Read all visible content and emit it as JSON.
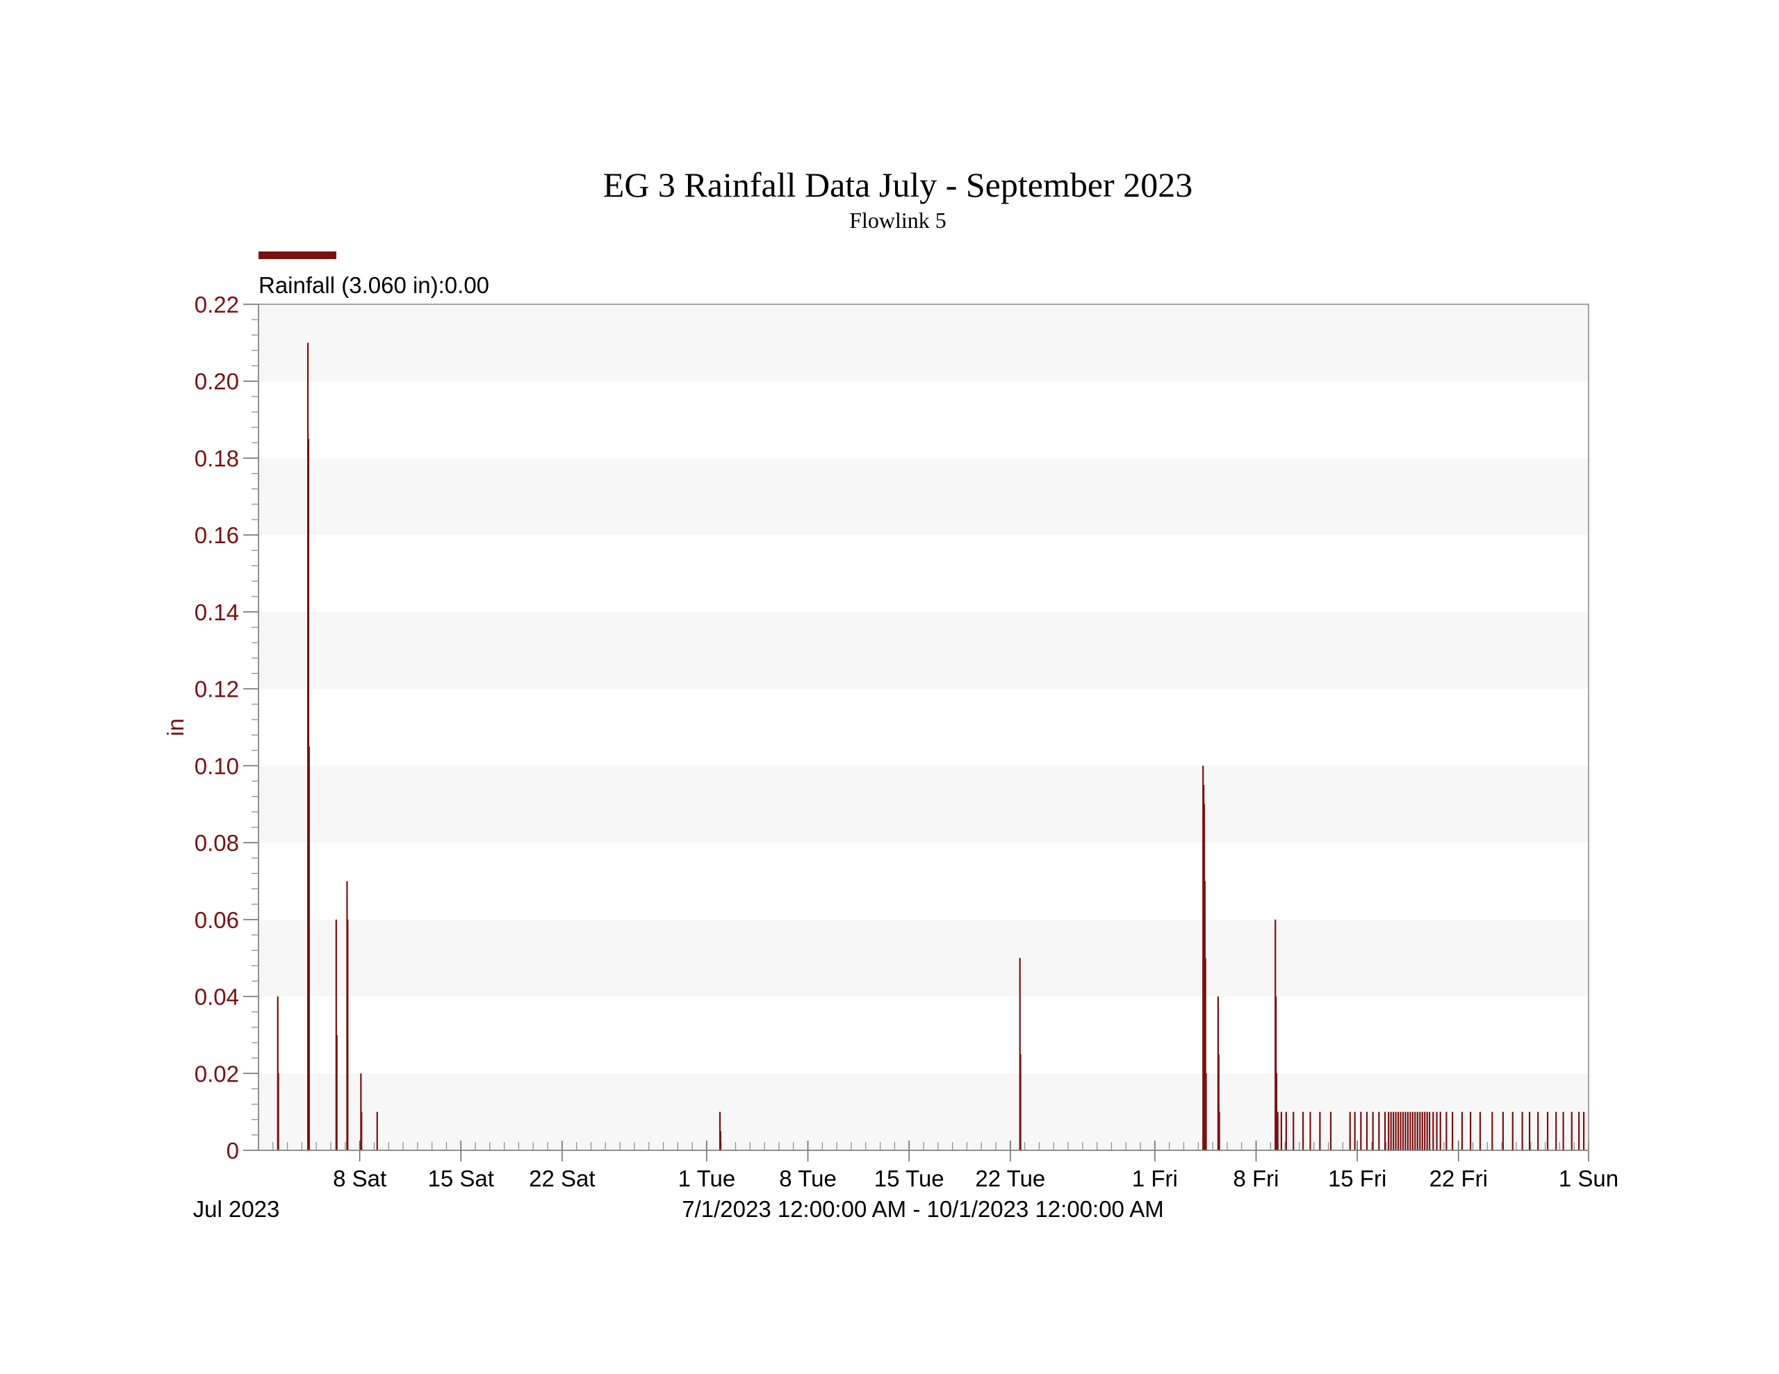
{
  "chart_data": {
    "type": "bar",
    "title": "EG 3 Rainfall Data July - September 2023",
    "subtitle": "Flowlink 5",
    "legend": {
      "label": "Rainfall (3.060 in):0.00",
      "color": "#7a1010",
      "position": "top-left"
    },
    "ylabel": "in",
    "ylim": [
      0,
      0.22
    ],
    "yticks": [
      "0",
      "0.02",
      "0.04",
      "0.06",
      "0.08",
      "0.10",
      "0.12",
      "0.14",
      "0.16",
      "0.18",
      "0.20",
      "0.22"
    ],
    "xlim": [
      "2023-07-01",
      "2023-10-01"
    ],
    "xticks": [
      {
        "date": "2023-07-08",
        "label": "8 Sat"
      },
      {
        "date": "2023-07-15",
        "label": "15 Sat"
      },
      {
        "date": "2023-07-22",
        "label": "22 Sat"
      },
      {
        "date": "2023-08-01",
        "label": "1 Tue"
      },
      {
        "date": "2023-08-08",
        "label": "8 Tue"
      },
      {
        "date": "2023-08-15",
        "label": "15 Tue"
      },
      {
        "date": "2023-08-22",
        "label": "22 Tue"
      },
      {
        "date": "2023-09-01",
        "label": "1 Fri"
      },
      {
        "date": "2023-09-08",
        "label": "8 Fri"
      },
      {
        "date": "2023-09-15",
        "label": "15 Fri"
      },
      {
        "date": "2023-09-22",
        "label": "22 Fri"
      },
      {
        "date": "2023-10-01",
        "label": "1 Sun"
      }
    ],
    "start_label": "Jul 2023",
    "xlabel": "7/1/2023 12:00:00 AM - 10/1/2023 12:00:00 AM",
    "grid": "alternating horizontal bands",
    "series": [
      {
        "name": "Rainfall",
        "color": "#7a1010",
        "points": [
          [
            "2023-07-02 08:00",
            0.04
          ],
          [
            "2023-07-02 09:00",
            0.02
          ],
          [
            "2023-07-04 10:00",
            0.21
          ],
          [
            "2023-07-04 11:00",
            0.185
          ],
          [
            "2023-07-04 12:00",
            0.105
          ],
          [
            "2023-07-06 09:00",
            0.06
          ],
          [
            "2023-07-06 10:00",
            0.03
          ],
          [
            "2023-07-07 03:00",
            0.07
          ],
          [
            "2023-07-07 04:00",
            0.06
          ],
          [
            "2023-07-08 02:00",
            0.02
          ],
          [
            "2023-07-08 03:00",
            0.01
          ],
          [
            "2023-07-09 05:00",
            0.01
          ],
          [
            "2023-08-01 22:00",
            0.01
          ],
          [
            "2023-08-01 23:00",
            0.005
          ],
          [
            "2023-08-22 16:00",
            0.05
          ],
          [
            "2023-08-22 17:00",
            0.025
          ],
          [
            "2023-09-04 08:00",
            0.1
          ],
          [
            "2023-09-04 09:00",
            0.095
          ],
          [
            "2023-09-04 10:00",
            0.09
          ],
          [
            "2023-09-04 11:00",
            0.07
          ],
          [
            "2023-09-04 12:00",
            0.05
          ],
          [
            "2023-09-04 13:00",
            0.02
          ],
          [
            "2023-09-05 09:00",
            0.04
          ],
          [
            "2023-09-05 10:00",
            0.025
          ],
          [
            "2023-09-05 11:00",
            0.01
          ],
          [
            "2023-09-09 08:00",
            0.06
          ],
          [
            "2023-09-09 09:00",
            0.04
          ],
          [
            "2023-09-09 10:00",
            0.02
          ],
          [
            "2023-09-09 12:00",
            0.01
          ],
          [
            "2023-09-09 18:00",
            0.01
          ],
          [
            "2023-09-10 02:00",
            0.01
          ],
          [
            "2023-09-10 14:00",
            0.01
          ],
          [
            "2023-09-11 06:00",
            0.01
          ],
          [
            "2023-09-11 18:00",
            0.01
          ],
          [
            "2023-09-12 10:00",
            0.01
          ],
          [
            "2023-09-13 04:00",
            0.01
          ],
          [
            "2023-09-14 12:00",
            0.01
          ],
          [
            "2023-09-14 20:00",
            0.01
          ],
          [
            "2023-09-15 06:00",
            0.01
          ],
          [
            "2023-09-15 16:00",
            0.01
          ],
          [
            "2023-09-16 02:00",
            0.01
          ],
          [
            "2023-09-16 12:00",
            0.01
          ],
          [
            "2023-09-16 22:00",
            0.01
          ],
          [
            "2023-09-17 04:00",
            0.01
          ],
          [
            "2023-09-17 08:00",
            0.01
          ],
          [
            "2023-09-17 12:00",
            0.01
          ],
          [
            "2023-09-17 16:00",
            0.01
          ],
          [
            "2023-09-17 20:00",
            0.01
          ],
          [
            "2023-09-18 00:00",
            0.01
          ],
          [
            "2023-09-18 04:00",
            0.01
          ],
          [
            "2023-09-18 08:00",
            0.01
          ],
          [
            "2023-09-18 12:00",
            0.01
          ],
          [
            "2023-09-18 16:00",
            0.01
          ],
          [
            "2023-09-18 20:00",
            0.01
          ],
          [
            "2023-09-19 00:00",
            0.01
          ],
          [
            "2023-09-19 04:00",
            0.01
          ],
          [
            "2023-09-19 08:00",
            0.01
          ],
          [
            "2023-09-19 12:00",
            0.01
          ],
          [
            "2023-09-19 16:00",
            0.01
          ],
          [
            "2023-09-19 20:00",
            0.01
          ],
          [
            "2023-09-20 00:00",
            0.01
          ],
          [
            "2023-09-20 06:00",
            0.01
          ],
          [
            "2023-09-20 12:00",
            0.01
          ],
          [
            "2023-09-20 18:00",
            0.01
          ],
          [
            "2023-09-21 04:00",
            0.01
          ],
          [
            "2023-09-21 14:00",
            0.01
          ],
          [
            "2023-09-22 06:00",
            0.01
          ],
          [
            "2023-09-22 20:00",
            0.01
          ],
          [
            "2023-09-23 12:00",
            0.01
          ],
          [
            "2023-09-24 08:00",
            0.01
          ],
          [
            "2023-09-25 02:00",
            0.01
          ],
          [
            "2023-09-25 18:00",
            0.01
          ],
          [
            "2023-09-26 10:00",
            0.01
          ],
          [
            "2023-09-26 22:00",
            0.01
          ],
          [
            "2023-09-27 12:00",
            0.01
          ],
          [
            "2023-09-28 04:00",
            0.01
          ],
          [
            "2023-09-28 18:00",
            0.01
          ],
          [
            "2023-09-29 06:00",
            0.01
          ],
          [
            "2023-09-29 20:00",
            0.01
          ],
          [
            "2023-09-30 08:00",
            0.01
          ],
          [
            "2023-09-30 16:00",
            0.01
          ]
        ]
      }
    ]
  }
}
